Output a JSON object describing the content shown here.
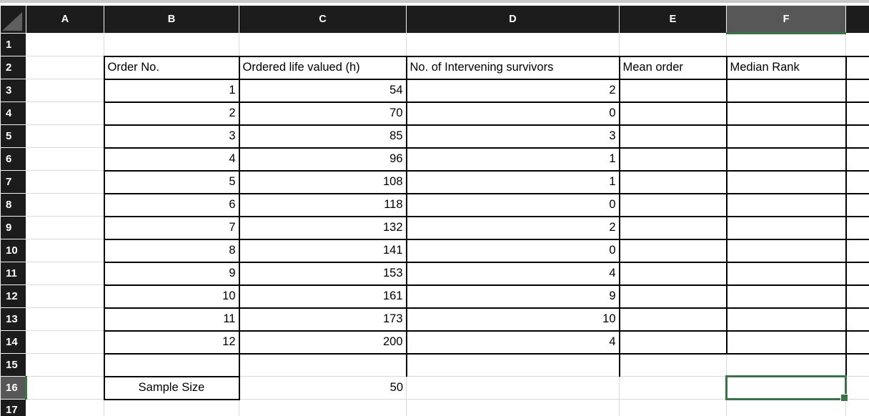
{
  "colors": {
    "header_bg": "#1c1c1c",
    "selected_header_bg": "#575757",
    "selection_green": "#3d7249",
    "gridline": "#d8d8d8",
    "table_border": "#000000",
    "header_text": "#ffffff",
    "cell_text": "#000000",
    "select_all_triangle": "#5f5f5f"
  },
  "sheet": {
    "column_letters": [
      "A",
      "B",
      "C",
      "D",
      "E",
      "F"
    ],
    "row_numbers": [
      1,
      2,
      3,
      4,
      5,
      6,
      7,
      8,
      9,
      10,
      11,
      12,
      13,
      14,
      15,
      16,
      17
    ],
    "selected_column": "F",
    "selected_row": 16,
    "active_cell": "F16"
  },
  "table": {
    "header_row": {
      "B": "Order No.",
      "C": "Ordered life valued (h)",
      "D": "No. of Intervening survivors",
      "E": "Mean order",
      "F": "Median Rank"
    },
    "rows": [
      {
        "order_no": 1,
        "life_h": 54,
        "survivors": 2
      },
      {
        "order_no": 2,
        "life_h": 70,
        "survivors": 0
      },
      {
        "order_no": 3,
        "life_h": 85,
        "survivors": 3
      },
      {
        "order_no": 4,
        "life_h": 96,
        "survivors": 1
      },
      {
        "order_no": 5,
        "life_h": 108,
        "survivors": 1
      },
      {
        "order_no": 6,
        "life_h": 118,
        "survivors": 0
      },
      {
        "order_no": 7,
        "life_h": 132,
        "survivors": 2
      },
      {
        "order_no": 8,
        "life_h": 141,
        "survivors": 0
      },
      {
        "order_no": 9,
        "life_h": 153,
        "survivors": 4
      },
      {
        "order_no": 10,
        "life_h": 161,
        "survivors": 9
      },
      {
        "order_no": 11,
        "life_h": 173,
        "survivors": 10
      },
      {
        "order_no": 12,
        "life_h": 200,
        "survivors": 4
      }
    ],
    "footer": {
      "label": "Sample Size",
      "value": 50
    }
  }
}
